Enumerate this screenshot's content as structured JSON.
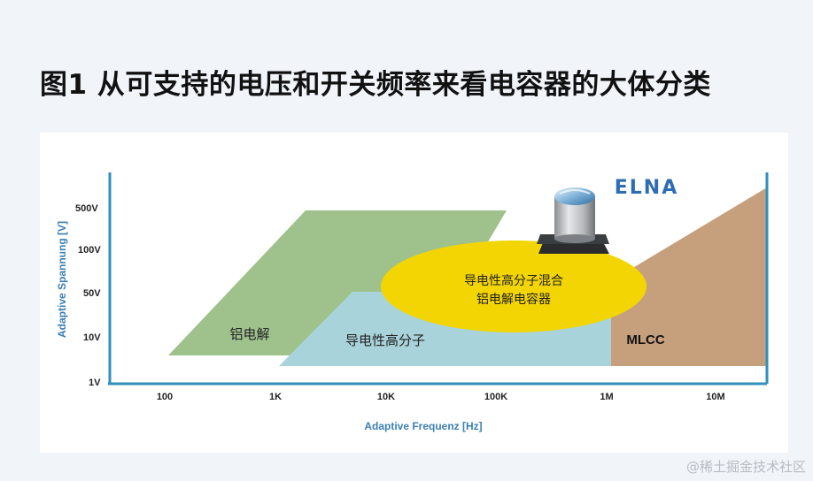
{
  "title": "图1 从可支持的电压和开关频率来看电容器的大体分类",
  "watermark": "@稀土掘金技术社区",
  "brand": "ELNA",
  "axes": {
    "ylabel": "Adaptive Spannung [V]",
    "xlabel": "Adaptive Frequenz [Hz]",
    "yticks": [
      "500V",
      "100V",
      "50V",
      "10V",
      "1V"
    ],
    "xticks": [
      "100",
      "1K",
      "10K",
      "100K",
      "1M",
      "10M"
    ]
  },
  "regions": [
    {
      "key": "aluminum",
      "label": "铝电解",
      "color": "#9fc28d"
    },
    {
      "key": "polymer",
      "label": "导电性高分子",
      "color": "#a9d3db"
    },
    {
      "key": "hybrid",
      "label_line1": "导电性高分子混合",
      "label_line2": "铝电解电容器",
      "color": "#f2d503"
    },
    {
      "key": "mlcc",
      "label": "MLCC",
      "color": "#c6a07d"
    }
  ],
  "colors": {
    "axis": "#2f8fbd",
    "axis_text": "#3a7fb5",
    "tick_text": "#222222",
    "brand": "#2d6db3"
  }
}
